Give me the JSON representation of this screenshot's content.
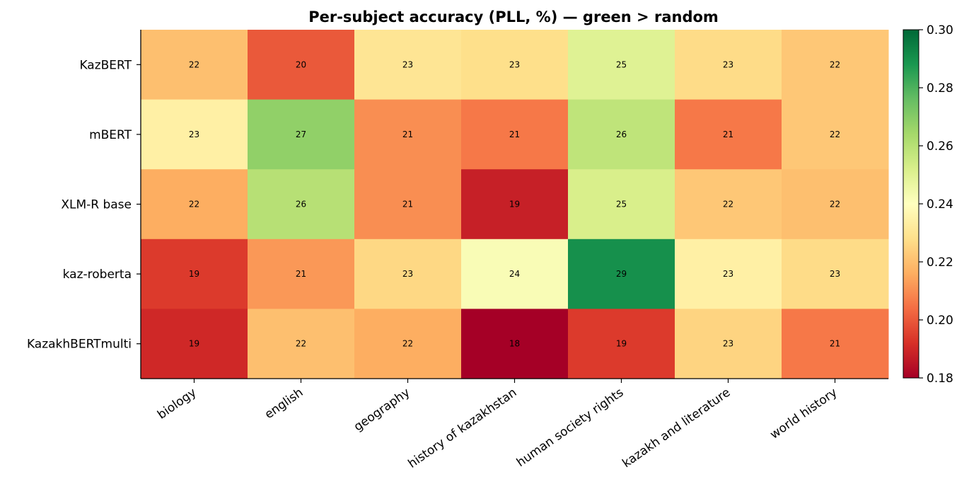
{
  "chart_data": {
    "type": "heatmap",
    "title": "Per-subject accuracy (PLL, %) — green > random",
    "xlabel": "",
    "ylabel": "",
    "columns": [
      "biology",
      "english",
      "geography",
      "history of kazakhstan",
      "human society rights",
      "kazakh and literature",
      "world history"
    ],
    "rows": [
      "KazBERT",
      "mBERT",
      "XLM-R base",
      "kaz-roberta",
      "KazakhBERTmulti"
    ],
    "values": [
      [
        0.22,
        0.2,
        0.23,
        0.228,
        0.25,
        0.227,
        0.222
      ],
      [
        0.234,
        0.268,
        0.21,
        0.206,
        0.258,
        0.206,
        0.222
      ],
      [
        0.216,
        0.26,
        0.21,
        0.188,
        0.252,
        0.222,
        0.22
      ],
      [
        0.194,
        0.212,
        0.226,
        0.242,
        0.29,
        0.234,
        0.227
      ],
      [
        0.19,
        0.22,
        0.216,
        0.18,
        0.194,
        0.225,
        0.206
      ]
    ],
    "cell_labels": [
      [
        "22",
        "20",
        "23",
        "23",
        "25",
        "23",
        "22"
      ],
      [
        "23",
        "27",
        "21",
        "21",
        "26",
        "21",
        "22"
      ],
      [
        "22",
        "26",
        "21",
        "19",
        "25",
        "22",
        "22"
      ],
      [
        "19",
        "21",
        "23",
        "24",
        "29",
        "23",
        "23"
      ],
      [
        "19",
        "22",
        "22",
        "18",
        "19",
        "23",
        "21"
      ]
    ],
    "colormap": "RdYlGn",
    "vmin": 0.18,
    "vmax": 0.3,
    "colorbar": {
      "ticks": [
        0.18,
        0.2,
        0.22,
        0.24,
        0.26,
        0.28,
        0.3
      ],
      "tick_labels": [
        "0.18",
        "0.20",
        "0.22",
        "0.24",
        "0.26",
        "0.28",
        "0.30"
      ]
    },
    "grid": false
  }
}
